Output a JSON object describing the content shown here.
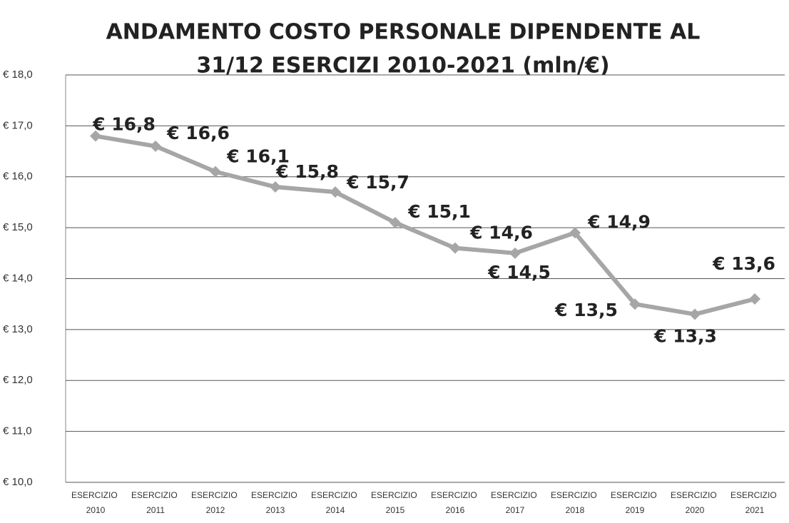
{
  "chart_data": {
    "type": "line",
    "title_lines": [
      "ANDAMENTO COSTO PERSONALE DIPENDENTE AL",
      "31/12  ESERCIZI 2010-2021 (mln/€)"
    ],
    "categories": [
      "ESERCIZIO 2010",
      "ESERCIZIO 2011",
      "ESERCIZIO 2012",
      "ESERCIZIO 2013",
      "ESERCIZIO 2014",
      "ESERCIZIO 2015",
      "ESERCIZIO 2016",
      "ESERCIZIO 2017",
      "ESERCIZIO 2018",
      "ESERCIZIO 2019",
      "ESERCIZIO 2020",
      "ESERCIZIO 2021"
    ],
    "values": [
      16.8,
      16.6,
      16.1,
      15.8,
      15.7,
      15.1,
      14.6,
      14.5,
      14.9,
      13.5,
      13.3,
      13.6
    ],
    "value_labels": [
      "€ 16,8",
      "€ 16,6",
      "€ 16,1",
      "€ 15,8",
      "€ 15,7",
      "€ 15,1",
      "€ 14,6",
      "€ 14,5",
      "€ 14,9",
      "€ 13,5",
      "€ 13,3",
      "€ 13,6"
    ],
    "color": "#a6a6a6",
    "ylim": [
      10,
      18
    ],
    "yticks": [
      {
        "value": 10,
        "label": "€ 10,0"
      },
      {
        "value": 11,
        "label": "€ 11,0"
      },
      {
        "value": 12,
        "label": "€ 12,0"
      },
      {
        "value": 13,
        "label": "€ 13,0"
      },
      {
        "value": 14,
        "label": "€ 14,0"
      },
      {
        "value": 15,
        "label": "€ 15,0"
      },
      {
        "value": 16,
        "label": "€ 16,0"
      },
      {
        "value": 17,
        "label": "€ 17,0"
      },
      {
        "value": 18,
        "label": "€ 18,0"
      }
    ],
    "grid": true
  }
}
